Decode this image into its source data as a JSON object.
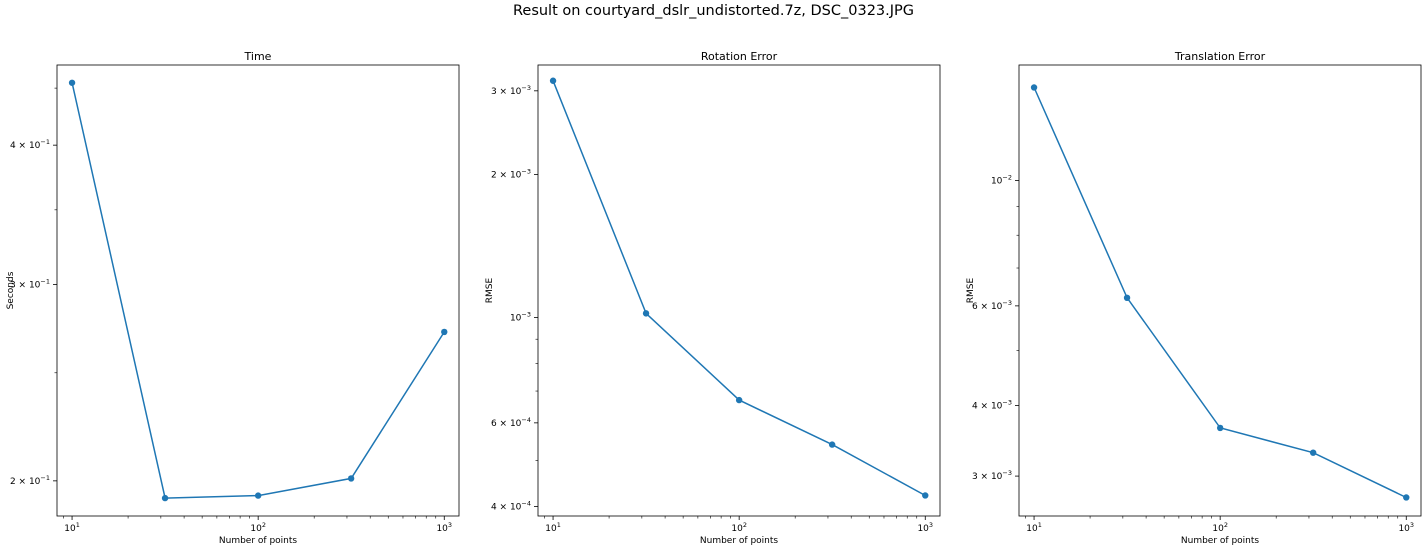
{
  "figure_title": "Result on courtyard_dslr_undistorted.7z, DSC_0323.JPG",
  "accent_color": "#1f77b4",
  "chart_data": [
    {
      "type": "line",
      "title": "Time",
      "xlabel": "Number of points",
      "ylabel": "Seconds",
      "xscale": "log",
      "yscale": "log",
      "x": [
        10,
        31.6,
        100,
        316,
        1000
      ],
      "y": [
        0.455,
        0.193,
        0.194,
        0.201,
        0.272
      ],
      "xlim": [
        8.3,
        1200
      ],
      "ylim": [
        0.186,
        0.472
      ],
      "xticks": [
        {
          "value": 10,
          "base": "10",
          "exp": "1"
        },
        {
          "value": 100,
          "base": "10",
          "exp": "2"
        },
        {
          "value": 1000,
          "base": "10",
          "exp": "3"
        }
      ],
      "yticks": [
        {
          "value": 0.2,
          "base": "2 × 10",
          "exp": "−1"
        },
        {
          "value": 0.3,
          "base": "3 × 10",
          "exp": "−1"
        },
        {
          "value": 0.4,
          "base": "4 × 10",
          "exp": "−1"
        }
      ],
      "yminor": [
        0.25,
        0.35,
        0.45
      ],
      "grid": false
    },
    {
      "type": "line",
      "title": "Rotation Error",
      "xlabel": "Number of points",
      "ylabel": "RMSE",
      "xscale": "log",
      "yscale": "log",
      "x": [
        10,
        31.6,
        100,
        316,
        1000
      ],
      "y": [
        0.00315,
        0.00102,
        0.00067,
        0.00054,
        0.000422
      ],
      "xlim": [
        8.3,
        1200
      ],
      "ylim": [
        0.000382,
        0.0034
      ],
      "xticks": [
        {
          "value": 10,
          "base": "10",
          "exp": "1"
        },
        {
          "value": 100,
          "base": "10",
          "exp": "2"
        },
        {
          "value": 1000,
          "base": "10",
          "exp": "3"
        }
      ],
      "yticks": [
        {
          "value": 0.0004,
          "base": "4 × 10",
          "exp": "−4"
        },
        {
          "value": 0.0006,
          "base": "6 × 10",
          "exp": "−4"
        },
        {
          "value": 0.001,
          "base": "10",
          "exp": "−3"
        },
        {
          "value": 0.002,
          "base": "2 × 10",
          "exp": "−3"
        },
        {
          "value": 0.003,
          "base": "3 × 10",
          "exp": "−3"
        }
      ],
      "yminor": [
        0.0005,
        0.0007,
        0.0008,
        0.0009
      ],
      "grid": false
    },
    {
      "type": "line",
      "title": "Translation Error",
      "xlabel": "Number of points",
      "ylabel": "RMSE",
      "xscale": "log",
      "yscale": "log",
      "x": [
        10,
        31.6,
        100,
        316,
        1000
      ],
      "y": [
        0.0146,
        0.0062,
        0.00365,
        0.0033,
        0.00275
      ],
      "xlim": [
        8.3,
        1200
      ],
      "ylim": [
        0.00255,
        0.016
      ],
      "xticks": [
        {
          "value": 10,
          "base": "10",
          "exp": "1"
        },
        {
          "value": 100,
          "base": "10",
          "exp": "2"
        },
        {
          "value": 1000,
          "base": "10",
          "exp": "3"
        }
      ],
      "yticks": [
        {
          "value": 0.003,
          "base": "3 × 10",
          "exp": "−3"
        },
        {
          "value": 0.004,
          "base": "4 × 10",
          "exp": "−3"
        },
        {
          "value": 0.006,
          "base": "6 × 10",
          "exp": "−3"
        },
        {
          "value": 0.01,
          "base": "10",
          "exp": "−2"
        }
      ],
      "yminor": [
        0.005,
        0.007,
        0.008,
        0.009
      ],
      "grid": false
    }
  ]
}
